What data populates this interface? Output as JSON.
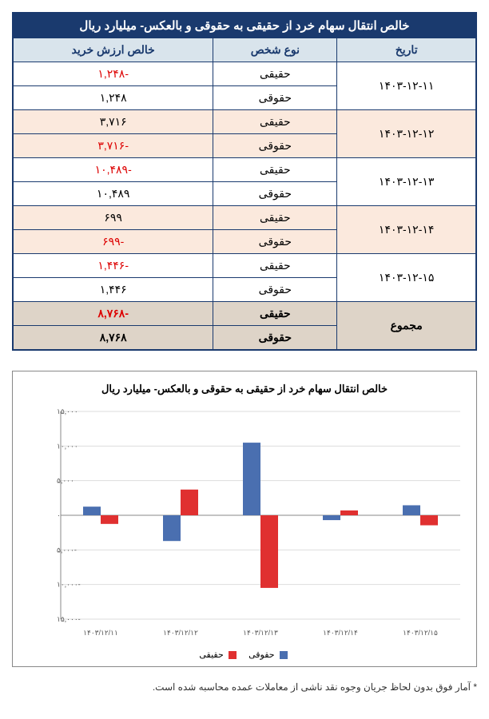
{
  "table": {
    "title": "خالص انتقال سهام خرد از حقیقی به حقوقی و بالعکس- میلیارد ریال",
    "headers": {
      "date": "تاریخ",
      "type": "نوع شخص",
      "value": "خالص ارزش خرید"
    },
    "rows": [
      {
        "date": "۱۴۰۳-۱۲-۱۱",
        "t1": "حقیقی",
        "v1": "-۱,۲۴۸",
        "v1neg": true,
        "t2": "حقوقی",
        "v2": "۱,۲۴۸",
        "v2neg": false,
        "band": false
      },
      {
        "date": "۱۴۰۳-۱۲-۱۲",
        "t1": "حقیقی",
        "v1": "۳,۷۱۶",
        "v1neg": false,
        "t2": "حقوقی",
        "v2": "-۳,۷۱۶",
        "v2neg": true,
        "band": true
      },
      {
        "date": "۱۴۰۳-۱۲-۱۳",
        "t1": "حقیقی",
        "v1": "-۱۰,۴۸۹",
        "v1neg": true,
        "t2": "حقوقی",
        "v2": "۱۰,۴۸۹",
        "v2neg": false,
        "band": false
      },
      {
        "date": "۱۴۰۳-۱۲-۱۴",
        "t1": "حقیقی",
        "v1": "۶۹۹",
        "v1neg": false,
        "t2": "حقوقی",
        "v2": "-۶۹۹",
        "v2neg": true,
        "band": true
      },
      {
        "date": "۱۴۰۳-۱۲-۱۵",
        "t1": "حقیقی",
        "v1": "-۱,۴۴۶",
        "v1neg": true,
        "t2": "حقوقی",
        "v2": "۱,۴۴۶",
        "v2neg": false,
        "band": false
      }
    ],
    "sum": {
      "label": "مجموع",
      "t1": "حقیقی",
      "v1": "-۸,۷۶۸",
      "t2": "حقوقی",
      "v2": "۸,۷۶۸"
    }
  },
  "chart": {
    "title": "خالص انتقال سهام خرد از حقیقی به حقوقی و بالعکس- میلیارد ریال",
    "categories": [
      "۱۴۰۳/۱۲/۱۱",
      "۱۴۰۳/۱۲/۱۲",
      "۱۴۰۳/۱۲/۱۳",
      "۱۴۰۳/۱۲/۱۴",
      "۱۴۰۳/۱۲/۱۵"
    ],
    "series": [
      {
        "name": "حقوقی",
        "color": "#4a6fb0",
        "values": [
          1248,
          -3716,
          10489,
          -699,
          1446
        ]
      },
      {
        "name": "حقیقی",
        "color": "#e03030",
        "values": [
          -1248,
          3716,
          -10489,
          699,
          -1446
        ]
      }
    ],
    "ylim": [
      -15000,
      15000
    ],
    "ytick_step": 5000,
    "yticks": [
      "-۱۵,۰۰۰",
      "-۱۰,۰۰۰",
      "-۵,۰۰۰",
      "۰",
      "۵,۰۰۰",
      "۱۰,۰۰۰",
      "۱۵,۰۰۰"
    ],
    "legend": {
      "s1": "حقوقی",
      "s2": "حقیقی"
    },
    "colors": {
      "grid": "#dddddd",
      "axis": "#888888",
      "bg": "#ffffff"
    },
    "bar_width": 0.22
  },
  "footnote": "* آمار فوق بدون لحاظ جریان وجوه نقد ناشی از معاملات عمده محاسبه شده است."
}
